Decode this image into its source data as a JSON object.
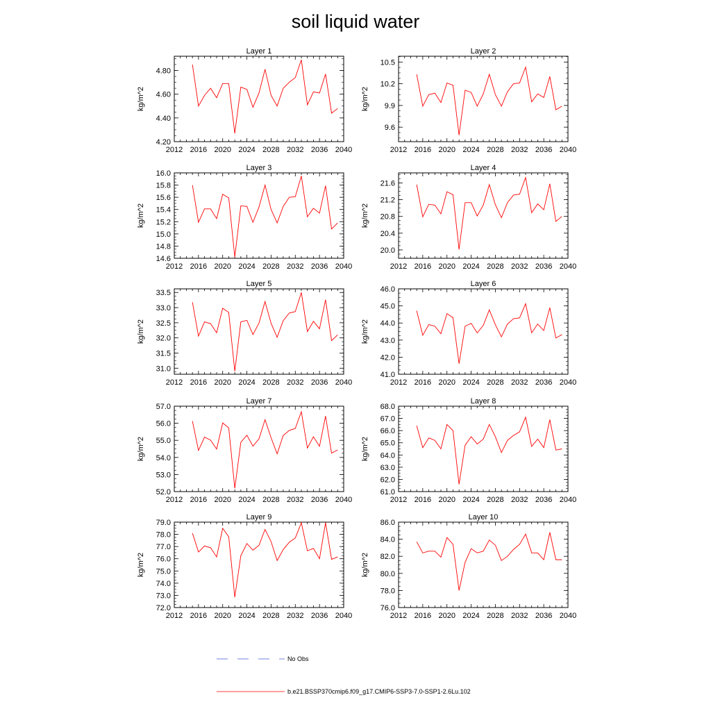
{
  "figure": {
    "title": "soil liquid water"
  },
  "legend": {
    "items": [
      {
        "label": "No Obs",
        "color": "#4a5ad6",
        "style": "dashed"
      },
      {
        "label": "b.e21.BSSP370cmip6.f09_g17.CMIP6-SSP3-7.0-SSP1-2.6Lu.102",
        "color": "#ff0000",
        "style": "solid"
      }
    ]
  },
  "chart_data": [
    {
      "type": "line",
      "title": "Layer 1",
      "ylabel": "kg/m^2",
      "xlim": [
        2012,
        2040
      ],
      "xticks": [
        2012,
        2016,
        2020,
        2024,
        2028,
        2032,
        2036,
        2040
      ],
      "ylim": [
        4.2,
        4.92
      ],
      "yticks": [
        "4.20",
        "4.40",
        "4.60",
        "4.80"
      ],
      "x": [
        2015,
        2016,
        2017,
        2018,
        2019,
        2020,
        2021,
        2022,
        2023,
        2024,
        2025,
        2026,
        2027,
        2028,
        2029,
        2030,
        2031,
        2032,
        2033,
        2034,
        2035,
        2036,
        2037,
        2038,
        2039
      ],
      "series": [
        {
          "values": [
            4.85,
            4.5,
            4.59,
            4.65,
            4.57,
            4.69,
            4.69,
            4.27,
            4.66,
            4.64,
            4.49,
            4.61,
            4.81,
            4.59,
            4.5,
            4.65,
            4.7,
            4.74,
            4.89,
            4.51,
            4.62,
            4.61,
            4.77,
            4.44,
            4.48
          ],
          "color": "#ff0000"
        }
      ]
    },
    {
      "type": "line",
      "title": "Layer 2",
      "ylabel": "kg/m^2",
      "xlim": [
        2012,
        2040
      ],
      "xticks": [
        2012,
        2016,
        2020,
        2024,
        2028,
        2032,
        2036,
        2040
      ],
      "ylim": [
        9.4,
        10.58
      ],
      "yticks": [
        "9.6",
        "9.9",
        "10.2",
        "10.5"
      ],
      "x": [
        2015,
        2016,
        2017,
        2018,
        2019,
        2020,
        2021,
        2022,
        2023,
        2024,
        2025,
        2026,
        2027,
        2028,
        2029,
        2030,
        2031,
        2032,
        2033,
        2034,
        2035,
        2036,
        2037,
        2038,
        2039
      ],
      "series": [
        {
          "values": [
            10.33,
            9.89,
            10.05,
            10.07,
            9.94,
            10.21,
            10.18,
            9.49,
            10.11,
            10.08,
            9.89,
            10.06,
            10.33,
            10.05,
            9.89,
            10.09,
            10.2,
            10.21,
            10.43,
            9.95,
            10.06,
            10.01,
            10.3,
            9.84,
            9.89
          ],
          "color": "#ff0000"
        }
      ]
    },
    {
      "type": "line",
      "title": "Layer 3",
      "ylabel": "kg/m^2",
      "xlim": [
        2012,
        2040
      ],
      "xticks": [
        2012,
        2016,
        2020,
        2024,
        2028,
        2032,
        2036,
        2040
      ],
      "ylim": [
        14.6,
        16.0
      ],
      "yticks": [
        "14.6",
        "14.8",
        "15.0",
        "15.2",
        "15.4",
        "15.6",
        "15.8",
        "16.0"
      ],
      "x": [
        2015,
        2016,
        2017,
        2018,
        2019,
        2020,
        2021,
        2022,
        2023,
        2024,
        2025,
        2026,
        2027,
        2028,
        2029,
        2030,
        2031,
        2032,
        2033,
        2034,
        2035,
        2036,
        2037,
        2038,
        2039
      ],
      "series": [
        {
          "values": [
            15.8,
            15.19,
            15.41,
            15.41,
            15.25,
            15.65,
            15.59,
            14.62,
            15.46,
            15.45,
            15.19,
            15.44,
            15.8,
            15.4,
            15.18,
            15.45,
            15.6,
            15.61,
            15.95,
            15.28,
            15.42,
            15.34,
            15.79,
            15.08,
            15.18
          ],
          "color": "#ff0000"
        }
      ]
    },
    {
      "type": "line",
      "title": "Layer 4",
      "ylabel": "kg/m^2",
      "xlim": [
        2012,
        2040
      ],
      "xticks": [
        2012,
        2016,
        2020,
        2024,
        2028,
        2032,
        2036,
        2040
      ],
      "ylim": [
        19.8,
        21.84
      ],
      "yticks": [
        "20.0",
        "20.4",
        "20.8",
        "21.2",
        "21.6"
      ],
      "x": [
        2015,
        2016,
        2017,
        2018,
        2019,
        2020,
        2021,
        2022,
        2023,
        2024,
        2025,
        2026,
        2027,
        2028,
        2029,
        2030,
        2031,
        2032,
        2033,
        2034,
        2035,
        2036,
        2037,
        2038,
        2039
      ],
      "series": [
        {
          "values": [
            21.56,
            20.79,
            21.09,
            21.07,
            20.86,
            21.39,
            21.32,
            20.01,
            21.13,
            21.13,
            20.81,
            21.07,
            21.56,
            21.08,
            20.77,
            21.13,
            21.31,
            21.33,
            21.73,
            20.89,
            21.1,
            20.96,
            21.58,
            20.68,
            20.8
          ],
          "color": "#ff0000"
        }
      ]
    },
    {
      "type": "line",
      "title": "Layer 5",
      "ylabel": "kg/m^2",
      "xlim": [
        2012,
        2040
      ],
      "xticks": [
        2012,
        2016,
        2020,
        2024,
        2028,
        2032,
        2036,
        2040
      ],
      "ylim": [
        30.8,
        33.62
      ],
      "yticks": [
        "31.0",
        "31.5",
        "32.0",
        "32.5",
        "33.0",
        "33.5"
      ],
      "x": [
        2015,
        2016,
        2017,
        2018,
        2019,
        2020,
        2021,
        2022,
        2023,
        2024,
        2025,
        2026,
        2027,
        2028,
        2029,
        2030,
        2031,
        2032,
        2033,
        2034,
        2035,
        2036,
        2037,
        2038,
        2039
      ],
      "series": [
        {
          "values": [
            33.18,
            32.06,
            32.53,
            32.47,
            32.17,
            32.98,
            32.84,
            30.9,
            32.53,
            32.58,
            32.11,
            32.49,
            33.2,
            32.48,
            32.02,
            32.57,
            32.82,
            32.87,
            33.5,
            32.21,
            32.55,
            32.3,
            33.26,
            31.91,
            32.1
          ],
          "color": "#ff0000"
        }
      ]
    },
    {
      "type": "line",
      "title": "Layer 6",
      "ylabel": "kg/m^2",
      "xlim": [
        2012,
        2040
      ],
      "xticks": [
        2012,
        2016,
        2020,
        2024,
        2028,
        2032,
        2036,
        2040
      ],
      "ylim": [
        41.0,
        46.0
      ],
      "yticks": [
        "41.0",
        "42.0",
        "43.0",
        "44.0",
        "45.0",
        "46.0"
      ],
      "x": [
        2015,
        2016,
        2017,
        2018,
        2019,
        2020,
        2021,
        2022,
        2023,
        2024,
        2025,
        2026,
        2027,
        2028,
        2029,
        2030,
        2031,
        2032,
        2033,
        2034,
        2035,
        2036,
        2037,
        2038,
        2039
      ],
      "series": [
        {
          "values": [
            44.72,
            43.28,
            43.91,
            43.81,
            43.37,
            44.55,
            44.31,
            41.62,
            43.81,
            43.98,
            43.42,
            43.86,
            44.77,
            43.9,
            43.19,
            43.94,
            44.25,
            44.3,
            45.13,
            43.43,
            43.94,
            43.56,
            44.9,
            43.12,
            43.32
          ],
          "color": "#ff0000"
        }
      ]
    },
    {
      "type": "line",
      "title": "Layer 7",
      "ylabel": "kg/m^2",
      "xlim": [
        2012,
        2040
      ],
      "xticks": [
        2012,
        2016,
        2020,
        2024,
        2028,
        2032,
        2036,
        2040
      ],
      "ylim": [
        52.0,
        57.0
      ],
      "yticks": [
        "52.0",
        "53.0",
        "54.0",
        "55.0",
        "56.0",
        "57.0"
      ],
      "x": [
        2015,
        2016,
        2017,
        2018,
        2019,
        2020,
        2021,
        2022,
        2023,
        2024,
        2025,
        2026,
        2027,
        2028,
        2029,
        2030,
        2031,
        2032,
        2033,
        2034,
        2035,
        2036,
        2037,
        2038,
        2039
      ],
      "series": [
        {
          "values": [
            56.13,
            54.41,
            55.19,
            55.01,
            54.49,
            56.02,
            55.73,
            52.19,
            54.89,
            55.3,
            54.66,
            55.09,
            56.21,
            55.15,
            54.21,
            55.28,
            55.58,
            55.7,
            56.68,
            54.55,
            55.21,
            54.65,
            56.42,
            54.25,
            54.44
          ],
          "color": "#ff0000"
        }
      ]
    },
    {
      "type": "line",
      "title": "Layer 8",
      "ylabel": "kg/m^2",
      "xlim": [
        2012,
        2040
      ],
      "xticks": [
        2012,
        2016,
        2020,
        2024,
        2028,
        2032,
        2036,
        2040
      ],
      "ylim": [
        61.0,
        68.0
      ],
      "yticks": [
        "61.0",
        "62.0",
        "63.0",
        "64.0",
        "65.0",
        "66.0",
        "67.0",
        "68.0"
      ],
      "x": [
        2015,
        2016,
        2017,
        2018,
        2019,
        2020,
        2021,
        2022,
        2023,
        2024,
        2025,
        2026,
        2027,
        2028,
        2029,
        2030,
        2031,
        2032,
        2033,
        2034,
        2035,
        2036,
        2037,
        2038,
        2039
      ],
      "series": [
        {
          "values": [
            66.4,
            64.6,
            65.4,
            65.2,
            64.5,
            66.5,
            66.0,
            61.6,
            64.8,
            65.5,
            64.9,
            65.3,
            66.5,
            65.5,
            64.2,
            65.2,
            65.6,
            65.9,
            67.1,
            64.7,
            65.3,
            64.6,
            66.9,
            64.4,
            64.5
          ],
          "color": "#ff0000"
        }
      ]
    },
    {
      "type": "line",
      "title": "Layer 9",
      "ylabel": "kg/m^2",
      "xlim": [
        2012,
        2040
      ],
      "xticks": [
        2012,
        2016,
        2020,
        2024,
        2028,
        2032,
        2036,
        2040
      ],
      "ylim": [
        72.0,
        79.0
      ],
      "yticks": [
        "72.0",
        "73.0",
        "74.0",
        "75.0",
        "76.0",
        "77.0",
        "78.0",
        "79.0"
      ],
      "x": [
        2015,
        2016,
        2017,
        2018,
        2019,
        2020,
        2021,
        2022,
        2023,
        2024,
        2025,
        2026,
        2027,
        2028,
        2029,
        2030,
        2031,
        2032,
        2033,
        2034,
        2035,
        2036,
        2037,
        2038,
        2039
      ],
      "series": [
        {
          "values": [
            78.1,
            76.55,
            77.05,
            76.9,
            76.15,
            78.5,
            77.8,
            72.85,
            76.25,
            77.25,
            76.7,
            77.1,
            78.4,
            77.4,
            75.85,
            76.75,
            77.35,
            77.7,
            78.95,
            76.65,
            76.85,
            76.0,
            78.95,
            75.95,
            76.15
          ],
          "color": "#ff0000"
        }
      ]
    },
    {
      "type": "line",
      "title": "Layer 10",
      "ylabel": "kg/m^2",
      "xlim": [
        2012,
        2040
      ],
      "xticks": [
        2012,
        2016,
        2020,
        2024,
        2028,
        2032,
        2036,
        2040
      ],
      "ylim": [
        76.0,
        86.0
      ],
      "yticks": [
        "76.0",
        "78.0",
        "80.0",
        "82.0",
        "84.0",
        "86.0"
      ],
      "x": [
        2015,
        2016,
        2017,
        2018,
        2019,
        2020,
        2021,
        2022,
        2023,
        2024,
        2025,
        2026,
        2027,
        2028,
        2029,
        2030,
        2031,
        2032,
        2033,
        2034,
        2035,
        2036,
        2037,
        2038,
        2039
      ],
      "series": [
        {
          "values": [
            83.7,
            82.4,
            82.6,
            82.6,
            81.9,
            84.2,
            83.4,
            78.0,
            81.3,
            82.9,
            82.4,
            82.6,
            83.9,
            83.3,
            81.5,
            82.0,
            82.8,
            83.4,
            84.6,
            82.4,
            82.4,
            81.6,
            84.8,
            81.6,
            81.6
          ],
          "color": "#ff0000"
        }
      ]
    }
  ]
}
